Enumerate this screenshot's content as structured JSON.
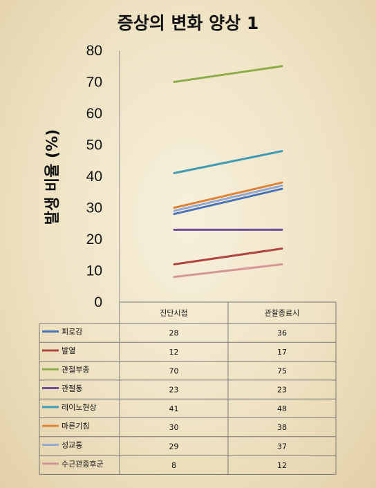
{
  "chart_data": {
    "type": "line",
    "title": "증상의 변화 양상 1",
    "ylabel": "발생 비율 (%)",
    "xlabel": "",
    "categories": [
      "진단시점",
      "관찰종료시"
    ],
    "ylim": [
      0,
      80
    ],
    "yticks": [
      "0",
      "10",
      "20",
      "30",
      "40",
      "50",
      "60",
      "70",
      "80"
    ],
    "legend": "table-bottom",
    "grid": false,
    "series": [
      {
        "name": "피로감",
        "values": [
          28,
          36
        ],
        "color": "#4a72b8"
      },
      {
        "name": "발열",
        "values": [
          12,
          17
        ],
        "color": "#b04340"
      },
      {
        "name": "관절부종",
        "values": [
          70,
          75
        ],
        "color": "#8cad4a"
      },
      {
        "name": "관절통",
        "values": [
          23,
          23
        ],
        "color": "#6e4f98"
      },
      {
        "name": "레이노현상",
        "values": [
          41,
          48
        ],
        "color": "#3f9ab3"
      },
      {
        "name": "마른기침",
        "values": [
          30,
          38
        ],
        "color": "#e0833a"
      },
      {
        "name": "성교통",
        "values": [
          29,
          37
        ],
        "color": "#94a9d4"
      },
      {
        "name": "수근관증후군",
        "values": [
          8,
          12
        ],
        "color": "#d69696"
      }
    ]
  }
}
